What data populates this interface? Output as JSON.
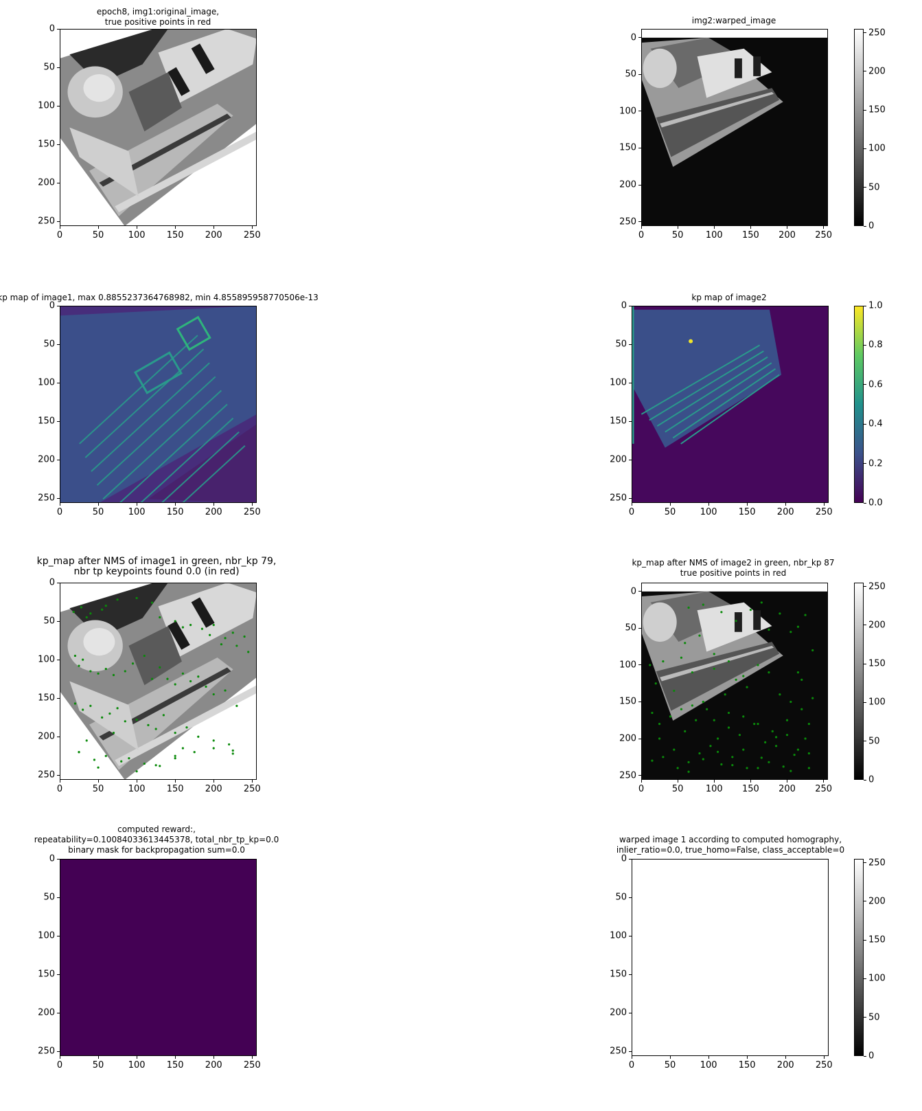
{
  "figure": {
    "panels": [
      {
        "id": "p1",
        "title": "epoch8, img1:original_image,\ntrue positive points in red",
        "kind": "gray-original",
        "colorbar": null
      },
      {
        "id": "p2",
        "title": "img2:warped_image",
        "kind": "gray-warped",
        "colorbar": "gray"
      },
      {
        "id": "p3",
        "title": "kp map of image1, max 0.8855237364768982, min 4.855895958770506e-13",
        "kind": "viridis-1",
        "colorbar": null
      },
      {
        "id": "p4",
        "title": "kp map of image2",
        "kind": "viridis-2",
        "colorbar": "viridis"
      },
      {
        "id": "p5",
        "title": "kp_map after NMS of image1 in green, nbr_kp 79,\nnbr tp keypoints found 0.0 (in red)",
        "kind": "gray-original-kp",
        "colorbar": null
      },
      {
        "id": "p6",
        "title": "kp_map after NMS of image2 in green, nbr_kp 87\ntrue positive points in red",
        "kind": "gray-warped-kp",
        "colorbar": "gray"
      },
      {
        "id": "p7",
        "title": "computed reward:,\nrepeatability=0.10084033613445378, total_nbr_tp_kp=0.0\nbinary mask for backpropagation sum=0.0",
        "kind": "solid-purple",
        "colorbar": null
      },
      {
        "id": "p8",
        "title": "warped image 1 according to computed homography,\ninlier_ratio=0.0, true_homo=False, class_acceptable=0",
        "kind": "solid-white",
        "colorbar": "gray"
      }
    ]
  },
  "chart_data": [
    {
      "type": "heatmap",
      "title": "epoch8, img1:original_image,\ntrue positive points in red",
      "colormap": "gray",
      "xlim": [
        0,
        256
      ],
      "ylim": [
        256,
        0
      ],
      "xticks": [
        0,
        50,
        100,
        150,
        200,
        250
      ],
      "yticks": [
        0,
        50,
        100,
        150,
        200,
        250
      ]
    },
    {
      "type": "heatmap",
      "title": "img2:warped_image",
      "colormap": "gray",
      "xlim": [
        0,
        256
      ],
      "ylim": [
        256,
        -12
      ],
      "xticks": [
        0,
        50,
        100,
        150,
        200,
        250
      ],
      "yticks": [
        0,
        50,
        100,
        150,
        200,
        250
      ],
      "colorbar": {
        "range": [
          0,
          255
        ],
        "ticks": [
          0,
          50,
          100,
          150,
          200,
          250
        ]
      }
    },
    {
      "type": "heatmap",
      "title": "kp map of image1, max 0.8855237364768982, min 4.855895958770506e-13",
      "colormap": "viridis",
      "xlim": [
        0,
        256
      ],
      "ylim": [
        256,
        0
      ],
      "xticks": [
        0,
        50,
        100,
        150,
        200,
        250
      ],
      "yticks": [
        0,
        50,
        100,
        150,
        200,
        250
      ]
    },
    {
      "type": "heatmap",
      "title": "kp map of image2",
      "colormap": "viridis",
      "xlim": [
        0,
        256
      ],
      "ylim": [
        256,
        0
      ],
      "xticks": [
        0,
        50,
        100,
        150,
        200,
        250
      ],
      "yticks": [
        0,
        50,
        100,
        150,
        200,
        250
      ],
      "colorbar": {
        "range": [
          0,
          1
        ],
        "ticks": [
          "0.0",
          "0.2",
          "0.4",
          "0.6",
          "0.8",
          "1.0"
        ]
      }
    },
    {
      "type": "scatter",
      "title": "kp_map after NMS of image1 in green, nbr_kp 79,\nnbr tp keypoints found 0.0 (in red)",
      "xlim": [
        0,
        256
      ],
      "ylim": [
        256,
        0
      ],
      "xticks": [
        0,
        50,
        100,
        150,
        200,
        250
      ],
      "yticks": [
        0,
        50,
        100,
        150,
        200,
        250
      ],
      "series": [
        {
          "name": "keypoints (green)",
          "x": [
            18,
            28,
            35,
            40,
            55,
            60,
            75,
            100,
            120,
            130,
            150,
            160,
            170,
            185,
            195,
            200,
            210,
            215,
            225,
            230,
            240,
            245,
            20,
            25,
            30,
            40,
            50,
            60,
            70,
            85,
            95,
            110,
            120,
            130,
            140,
            150,
            160,
            170,
            180,
            190,
            200,
            215,
            230,
            20,
            30,
            40,
            55,
            65,
            75,
            85,
            100,
            115,
            125,
            135,
            150,
            165,
            180,
            200,
            220,
            25,
            35,
            45,
            60,
            70,
            90,
            110,
            130,
            150,
            175,
            200,
            225,
            50,
            80,
            100,
            125,
            160,
            25,
            150,
            225
          ],
          "y": [
            38,
            32,
            45,
            40,
            35,
            30,
            22,
            20,
            26,
            45,
            50,
            58,
            55,
            60,
            68,
            55,
            80,
            72,
            65,
            82,
            70,
            90,
            95,
            108,
            100,
            115,
            118,
            112,
            120,
            115,
            105,
            95,
            125,
            110,
            125,
            132,
            118,
            128,
            122,
            135,
            145,
            140,
            160,
            157,
            165,
            160,
            175,
            170,
            163,
            180,
            178,
            185,
            190,
            172,
            195,
            188,
            200,
            215,
            210,
            220,
            205,
            230,
            225,
            195,
            228,
            235,
            238,
            225,
            220,
            205,
            222,
            240,
            232,
            245,
            237,
            215,
            220,
            228,
            218
          ]
        }
      ]
    },
    {
      "type": "scatter",
      "title": "kp_map after NMS of image2 in green, nbr_kp 87\ntrue positive points in red",
      "xlim": [
        0,
        256
      ],
      "ylim": [
        256,
        -12
      ],
      "xticks": [
        0,
        50,
        100,
        150,
        200,
        250
      ],
      "yticks": [
        0,
        50,
        100,
        150,
        200,
        250
      ],
      "colorbar": {
        "range": [
          0,
          255
        ],
        "ticks": [
          0,
          50,
          100,
          150,
          200,
          250
        ]
      },
      "series": [
        {
          "name": "keypoints (green)",
          "x": [
            65,
            85,
            110,
            130,
            150,
            165,
            190,
            205,
            215,
            225,
            235,
            12,
            20,
            30,
            45,
            55,
            70,
            85,
            100,
            115,
            130,
            145,
            160,
            175,
            190,
            205,
            220,
            235,
            15,
            25,
            40,
            60,
            75,
            90,
            105,
            120,
            135,
            155,
            170,
            185,
            200,
            215,
            230,
            15,
            30,
            50,
            65,
            80,
            95,
            110,
            125,
            140,
            160,
            175,
            195,
            210,
            225,
            40,
            55,
            70,
            85,
            100,
            120,
            140,
            160,
            180,
            200,
            220,
            230,
            25,
            45,
            65,
            85,
            105,
            125,
            145,
            165,
            185,
            205,
            60,
            80,
            100,
            120,
            140,
            215,
            230,
            175
          ],
          "y": [
            22,
            18,
            28,
            40,
            25,
            15,
            30,
            55,
            48,
            32,
            80,
            100,
            125,
            95,
            135,
            90,
            110,
            150,
            105,
            140,
            120,
            130,
            100,
            110,
            140,
            150,
            120,
            145,
            165,
            180,
            170,
            190,
            175,
            160,
            200,
            185,
            195,
            180,
            205,
            210,
            195,
            215,
            220,
            230,
            225,
            240,
            245,
            220,
            210,
            235,
            225,
            215,
            240,
            232,
            238,
            222,
            200,
            170,
            160,
            155,
            150,
            175,
            165,
            170,
            180,
            190,
            175,
            160,
            240,
            200,
            215,
            232,
            228,
            218,
            236,
            240,
            226,
            198,
            244,
            70,
            60,
            85,
            95,
            115,
            110,
            180,
            52
          ]
        }
      ]
    },
    {
      "type": "heatmap",
      "title": "computed reward:,\nrepeatability=0.10084033613445378, total_nbr_tp_kp=0.0\nbinary mask for backpropagation sum=0.0",
      "colormap": "viridis",
      "xlim": [
        0,
        256
      ],
      "ylim": [
        256,
        0
      ],
      "xticks": [
        0,
        50,
        100,
        150,
        200,
        250
      ],
      "yticks": [
        0,
        50,
        100,
        150,
        200,
        250
      ]
    },
    {
      "type": "heatmap",
      "title": "warped image 1 according to computed homography,\ninlier_ratio=0.0, true_homo=False, class_acceptable=0",
      "colormap": "gray",
      "xlim": [
        0,
        256
      ],
      "ylim": [
        256,
        0
      ],
      "xticks": [
        0,
        50,
        100,
        150,
        200,
        250
      ],
      "yticks": [
        0,
        50,
        100,
        150,
        200,
        250
      ],
      "colorbar": {
        "range": [
          0,
          255
        ],
        "ticks": [
          0,
          50,
          100,
          150,
          200,
          250
        ]
      }
    }
  ]
}
